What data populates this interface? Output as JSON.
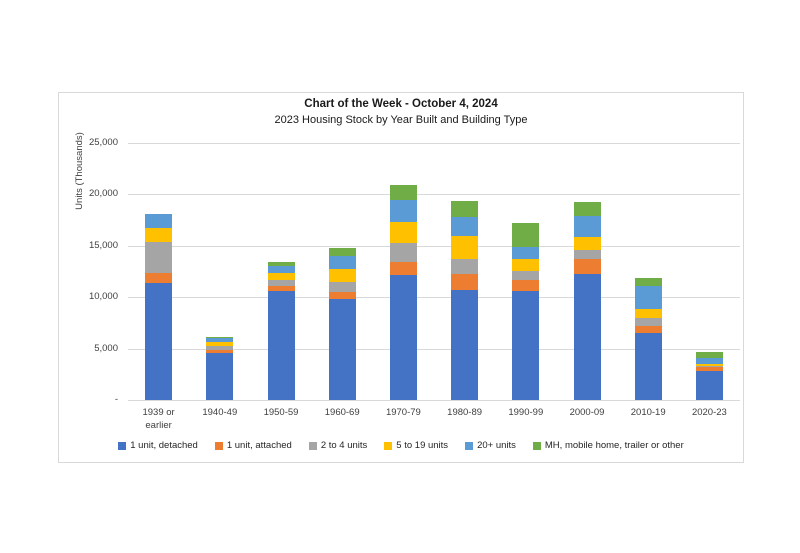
{
  "chart": {
    "title": "Chart of the Week - October 4, 2024",
    "subtitle": "2023 Housing Stock by Year Built and Building Type"
  },
  "chart_data": {
    "type": "bar",
    "stacked": true,
    "title": "Chart of the Week - October 4, 2024",
    "subtitle": "2023 Housing Stock by Year Built and Building Type",
    "xlabel": "",
    "ylabel": "Units (Thousands)",
    "ylim": [
      0,
      25000
    ],
    "ytick_interval": 5000,
    "ytick_labels": [
      "-",
      "5,000",
      "10,000",
      "15,000",
      "20,000",
      "25,000"
    ],
    "grid": true,
    "legend_position": "bottom",
    "gridline_color": "#d9d9d9",
    "categories": [
      "1939 or earlier",
      "1940-49",
      "1950-59",
      "1960-69",
      "1970-79",
      "1980-89",
      "1990-99",
      "2000-09",
      "2010-19",
      "2020-23"
    ],
    "series": [
      {
        "name": "1 unit, detached",
        "color": "#4472C4",
        "values": [
          11400,
          4600,
          10600,
          9800,
          12200,
          10700,
          10600,
          12300,
          6500,
          2800
        ]
      },
      {
        "name": "1 unit, attached",
        "color": "#ED7D31",
        "values": [
          1000,
          250,
          500,
          700,
          1250,
          1600,
          1050,
          1450,
          750,
          400
        ]
      },
      {
        "name": "2 to 4 units",
        "color": "#A5A5A5",
        "values": [
          3000,
          400,
          600,
          950,
          1800,
          1450,
          900,
          800,
          700,
          100
        ]
      },
      {
        "name": "5 to 19 units",
        "color": "#FFC000",
        "values": [
          1300,
          400,
          650,
          1300,
          2100,
          2250,
          1150,
          1300,
          950,
          200
        ]
      },
      {
        "name": "20+ units",
        "color": "#5B9BD5",
        "values": [
          1400,
          350,
          650,
          1300,
          2100,
          1800,
          1200,
          2100,
          2200,
          550
        ]
      },
      {
        "name": "MH, mobile home, trailer or other",
        "color": "#70AD47",
        "values": [
          0,
          150,
          400,
          750,
          1450,
          1550,
          2350,
          1300,
          800,
          600
        ]
      }
    ],
    "totals": [
      18100,
      6150,
      13400,
      14800,
      20900,
      19350,
      17250,
      19250,
      11900,
      4650
    ]
  }
}
